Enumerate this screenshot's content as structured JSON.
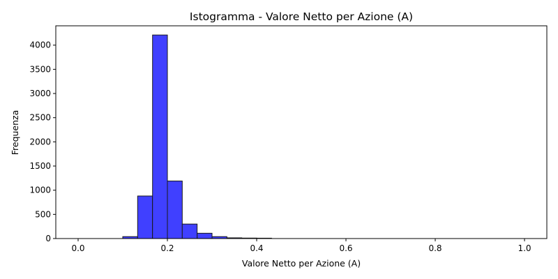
{
  "chart_data": {
    "type": "bar",
    "title": "Istogramma - Valore Netto per Azione (A)",
    "xlabel": "Valore Netto per Azione (A)",
    "ylabel": "Frequenza",
    "xlim": [
      -0.05,
      1.05
    ],
    "ylim": [
      0,
      4400
    ],
    "xticks": [
      0.0,
      0.2,
      0.4,
      0.6,
      0.8,
      1.0
    ],
    "xtick_labels": [
      "0.0",
      "0.2",
      "0.4",
      "0.6",
      "0.8",
      "1.0"
    ],
    "yticks": [
      0,
      500,
      1000,
      1500,
      2000,
      2500,
      3000,
      3500,
      4000
    ],
    "ytick_labels": [
      "0",
      "500",
      "1000",
      "1500",
      "2000",
      "2500",
      "3000",
      "3500",
      "4000"
    ],
    "bin_width": 0.0333,
    "bins": [
      {
        "x0": 0.0,
        "value": 0
      },
      {
        "x0": 0.0333,
        "value": 0
      },
      {
        "x0": 0.0667,
        "value": 0
      },
      {
        "x0": 0.1,
        "value": 40
      },
      {
        "x0": 0.1333,
        "value": 880
      },
      {
        "x0": 0.1667,
        "value": 4210
      },
      {
        "x0": 0.2,
        "value": 1190
      },
      {
        "x0": 0.2333,
        "value": 300
      },
      {
        "x0": 0.2667,
        "value": 110
      },
      {
        "x0": 0.3,
        "value": 40
      },
      {
        "x0": 0.3333,
        "value": 15
      },
      {
        "x0": 0.3667,
        "value": 10
      },
      {
        "x0": 0.4,
        "value": 8
      },
      {
        "x0": 0.4333,
        "value": 0
      },
      {
        "x0": 0.4667,
        "value": 0
      },
      {
        "x0": 0.5,
        "value": 0
      },
      {
        "x0": 0.5333,
        "value": 0
      },
      {
        "x0": 0.5667,
        "value": 0
      },
      {
        "x0": 0.6,
        "value": 0
      },
      {
        "x0": 0.6333,
        "value": 0
      },
      {
        "x0": 0.6667,
        "value": 0
      },
      {
        "x0": 0.7,
        "value": 0
      },
      {
        "x0": 0.7333,
        "value": 0
      },
      {
        "x0": 0.7667,
        "value": 0
      },
      {
        "x0": 0.8,
        "value": 0
      },
      {
        "x0": 0.8333,
        "value": 0
      },
      {
        "x0": 0.8667,
        "value": 0
      },
      {
        "x0": 0.9,
        "value": 0
      },
      {
        "x0": 0.9333,
        "value": 0
      },
      {
        "x0": 0.9667,
        "value": 0
      }
    ],
    "bar_color": "#4040ff",
    "edge_color": "#1a1a1a",
    "grid": false,
    "legend": false
  }
}
